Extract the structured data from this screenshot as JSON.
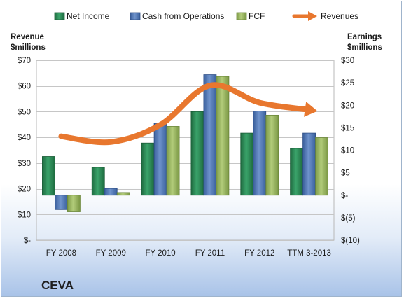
{
  "company_name": "CEVA",
  "colors": {
    "net_income": "#2e8b57",
    "cash_from_operations": "#4f75b4",
    "fcf": "#98b85d",
    "revenues": "#e8772e"
  },
  "chart_data": {
    "type": "bar",
    "categories": [
      "FY 2008",
      "FY 2009",
      "FY 2010",
      "FY 2011",
      "FY 2012",
      "TTM 3-2013"
    ],
    "series": [
      {
        "name": "Net Income",
        "axis": "right",
        "values": [
          8.6,
          6.2,
          11.6,
          18.6,
          13.8,
          10.4
        ]
      },
      {
        "name": "Cash from Operations",
        "axis": "right",
        "values": [
          -3.2,
          1.5,
          16.0,
          26.8,
          18.7,
          13.8
        ]
      },
      {
        "name": "FCF",
        "axis": "right",
        "values": [
          -3.7,
          0.6,
          15.3,
          26.4,
          17.8,
          12.8
        ]
      },
      {
        "name": "Revenues",
        "axis": "left",
        "type": "line",
        "values": [
          40.4,
          38.2,
          44.9,
          60.2,
          53.5,
          50.7
        ]
      }
    ],
    "left_axis": {
      "label_line1": "Revenue",
      "label_line2": "$millions",
      "range": [
        0,
        70
      ],
      "tick_values": [
        0,
        10,
        20,
        30,
        40,
        50,
        60,
        70
      ],
      "tick_labels": [
        "$-",
        "$10",
        "$20",
        "$30",
        "$40",
        "$50",
        "$60",
        "$70"
      ]
    },
    "right_axis": {
      "label_line1": "Earnings",
      "label_line2": "$millions",
      "range": [
        -10,
        30
      ],
      "tick_values": [
        -10,
        -5,
        0,
        5,
        10,
        15,
        20,
        25,
        30
      ],
      "tick_labels": [
        "$(10)",
        "$(5)",
        "$-",
        "$5",
        "$10",
        "$15",
        "$20",
        "$25",
        "$30"
      ]
    },
    "grid": true,
    "legend": "top"
  }
}
